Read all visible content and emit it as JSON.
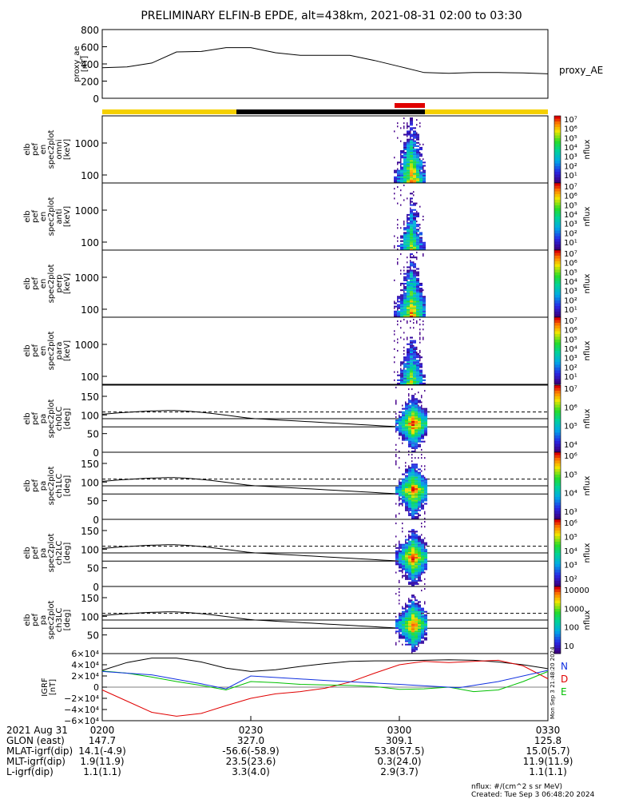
{
  "title": "PRELIMINARY ELFIN-B EPDE, alt=438km, 2021-08-31 02:00 to 03:30",
  "chart_data": [
    {
      "type": "line",
      "name": "proxy_ae",
      "ylabel": [
        "proxy_ae",
        "[nT]"
      ],
      "legend": "proxy_AE",
      "ylim": [
        0,
        800
      ],
      "yticks": [
        "800",
        "600",
        "400",
        "200",
        "0"
      ],
      "x_minutes": [
        0,
        5,
        10,
        15,
        20,
        25,
        30,
        35,
        40,
        45,
        50,
        55,
        60,
        65,
        70,
        75,
        80,
        85,
        90
      ],
      "values": [
        355,
        365,
        410,
        540,
        545,
        590,
        590,
        530,
        500,
        500,
        500,
        440,
        370,
        300,
        290,
        300,
        300,
        295,
        285
      ]
    },
    {
      "type": "heatmap",
      "panels": [
        {
          "ylabel": [
            "elb",
            "pef",
            "en",
            "spec2plot",
            "omni",
            "[keV]"
          ],
          "yticks": [
            "1000",
            "100"
          ],
          "cbar": [
            "10⁷",
            "10⁶",
            "10⁵",
            "10⁴",
            "10³",
            "10²",
            "10¹"
          ],
          "cbar_label": "nflux"
        },
        {
          "ylabel": [
            "elb",
            "pef",
            "en",
            "spec2plot",
            "anti",
            "[keV]"
          ],
          "yticks": [
            "1000",
            "100"
          ],
          "cbar": [
            "10⁷",
            "10⁶",
            "10⁵",
            "10⁴",
            "10³",
            "10²",
            "10¹"
          ],
          "cbar_label": "nflux"
        },
        {
          "ylabel": [
            "elb",
            "pef",
            "en",
            "spec2plot",
            "perp",
            "[keV]"
          ],
          "yticks": [
            "1000",
            "100"
          ],
          "cbar": [
            "10⁷",
            "10⁶",
            "10⁵",
            "10⁴",
            "10³",
            "10²",
            "10¹"
          ],
          "cbar_label": "nflux"
        },
        {
          "ylabel": [
            "elb",
            "pef",
            "en",
            "spec2plot",
            "para",
            "[keV]"
          ],
          "yticks": [
            "1000",
            "100"
          ],
          "cbar": [
            "10⁷",
            "10⁶",
            "10⁵",
            "10⁴",
            "10³",
            "10²",
            "10¹"
          ],
          "cbar_label": "nflux"
        },
        {
          "ylabel": [
            "elb",
            "pef",
            "pa",
            "spec2plot",
            "ch0LC",
            "[deg]"
          ],
          "yticks": [
            "150",
            "100",
            "50",
            "0"
          ],
          "cbar": [
            "10⁷",
            "10⁶",
            "10⁵",
            "10⁴"
          ],
          "cbar_label": "nflux"
        },
        {
          "ylabel": [
            "elb",
            "pef",
            "pa",
            "spec2plot",
            "ch1LC",
            "[deg]"
          ],
          "yticks": [
            "150",
            "100",
            "50",
            "0"
          ],
          "cbar": [
            "10⁶",
            "10⁵",
            "10⁴",
            "10³"
          ],
          "cbar_label": "nflux"
        },
        {
          "ylabel": [
            "elb",
            "pef",
            "pa",
            "spec2plot",
            "ch2LC",
            "[deg]"
          ],
          "yticks": [
            "150",
            "100",
            "50",
            "0"
          ],
          "cbar": [
            "10⁶",
            "10⁵",
            "10⁴",
            "10³",
            "10²"
          ],
          "cbar_label": "nflux"
        },
        {
          "ylabel": [
            "elb",
            "pef",
            "pa",
            "spec2plot",
            "ch3LC",
            "[deg]"
          ],
          "yticks": [
            "150",
            "100",
            "50"
          ],
          "cbar": [
            "10000",
            "1000",
            "100",
            "10"
          ],
          "cbar_label": "nflux"
        }
      ]
    },
    {
      "type": "line",
      "name": "IGRF",
      "ylabel": [
        "IGRF",
        "[nT]"
      ],
      "ylim": [
        -60000,
        60000
      ],
      "yticks": [
        "6×10⁴",
        "4×10⁴",
        "2×10⁴",
        "0",
        "−2×10⁴",
        "−4×10⁴",
        "−6×10⁴"
      ],
      "legend": [
        "N",
        "D",
        "E"
      ],
      "x_minutes": [
        0,
        5,
        10,
        15,
        20,
        25,
        30,
        35,
        40,
        45,
        50,
        55,
        60,
        65,
        70,
        75,
        80,
        85,
        90
      ],
      "series": [
        {
          "name": "N",
          "values": [
            30000,
            44000,
            52000,
            52000,
            45000,
            34000,
            28000,
            31000,
            37000,
            42000,
            46000,
            47000,
            47000,
            48000,
            49000,
            48000,
            45000,
            40000,
            33000
          ]
        },
        {
          "name": "D",
          "values": [
            -5000,
            -25000,
            -45000,
            -52000,
            -47000,
            -33000,
            -20000,
            -12000,
            -8000,
            -2000,
            9000,
            25000,
            40000,
            46000,
            44000,
            46000,
            48000,
            38000,
            15000
          ]
        },
        {
          "name": "E",
          "values": [
            29000,
            25000,
            18000,
            10000,
            3000,
            -5000,
            10000,
            8000,
            5000,
            4000,
            3000,
            1000,
            -4000,
            -3000,
            0,
            -8000,
            -5000,
            10000,
            28000
          ]
        }
      ]
    }
  ],
  "bar": {
    "colors": {
      "yellow": "#f5d000",
      "black": "#000000",
      "red": "#e00000"
    }
  },
  "side_stamp": "Mon Sep  3 21:48:20 2024",
  "footer": {
    "labels": [
      "2021 Aug 31",
      "GLON (east)",
      "MLAT-igrf(dip)",
      "MLT-igrf(dip)",
      "L-igrf(dip)"
    ],
    "ticks": [
      "0200",
      "0230",
      "0300",
      "0330"
    ],
    "rows": [
      [
        "147.7",
        "327.0",
        "309.1",
        "125.8"
      ],
      [
        "14.1(-4.9)",
        "-56.6(-58.9)",
        "53.8(57.5)",
        "15.0(5.7)"
      ],
      [
        "1.9(11.9)",
        "23.5(23.6)",
        "0.3(24.0)",
        "11.9(11.9)"
      ],
      [
        "1.1(1.1)",
        "3.3(4.0)",
        "2.9(3.7)",
        "1.1(1.1)"
      ]
    ],
    "note1": "nflux: #/(cm^2 s sr MeV)",
    "note2": "Created: Tue Sep  3 06:48:20 2024"
  }
}
